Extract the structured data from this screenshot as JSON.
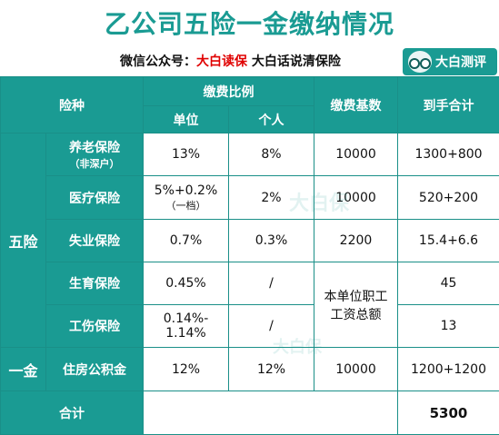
{
  "title": "乙公司五险一金缴纳情况",
  "subtitle": {
    "prefix": "微信公众号：",
    "highlight": "大白读保",
    "suffix": "大白话说清保险"
  },
  "logo": {
    "label": "大白测评",
    "icon": "owl-glasses-icon"
  },
  "watermark": "大白保",
  "colors": {
    "header_teal": "#1a9b93",
    "highlight_red": "#e00000"
  },
  "headers": {
    "category": "险种",
    "ratio": "缴费比例",
    "company": "单位",
    "personal": "个人",
    "base": "缴费基数",
    "net": "到手合计"
  },
  "groups": {
    "five": "五险",
    "one": "一金"
  },
  "rows": [
    {
      "name": "养老保险",
      "note": "（非深户）",
      "company": "13%",
      "personal": "8%",
      "base": "10000",
      "net": "1300+800"
    },
    {
      "name": "医疗保险",
      "company": "5%+0.2%",
      "company_note": "（一档）",
      "personal": "2%",
      "base": "10000",
      "net": "520+200"
    },
    {
      "name": "失业保险",
      "company": "0.7%",
      "personal": "0.3%",
      "base": "2200",
      "net": "15.4+6.6"
    },
    {
      "name": "生育保险",
      "company": "0.45%",
      "personal": "/",
      "base": "",
      "net": "45"
    },
    {
      "name": "工伤保险",
      "company": "0.14%-\n1.14%",
      "personal": "/",
      "base": "本单位职工\n工资总额",
      "net": "13"
    },
    {
      "name": "住房公积金",
      "company": "12%",
      "personal": "12%",
      "base": "10000",
      "net": "1200+1200"
    }
  ],
  "footer": {
    "label": "合计",
    "total": "5300"
  }
}
